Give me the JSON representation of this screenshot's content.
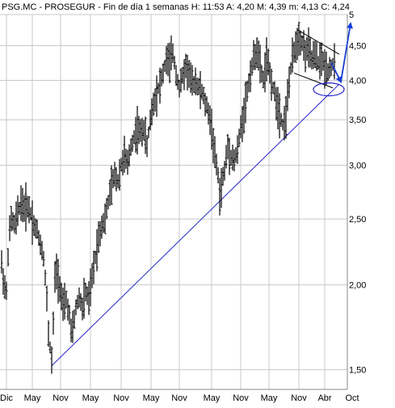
{
  "chart_data": {
    "type": "candlestick",
    "title": "PSG.MC - PROSEGUR - Fin de día 1 semanas H: 11:53  A: 4,20  M: 4,39  m: 4,13  C: 4,24",
    "y_scale": "log",
    "ylim": [
      1.45,
      5.0
    ],
    "y_ticks": [
      {
        "value": 5.0,
        "label": "5"
      },
      {
        "value": 4.5,
        "label": "4,50"
      },
      {
        "value": 4.0,
        "label": "4,00"
      },
      {
        "value": 3.5,
        "label": "3,50"
      },
      {
        "value": 3.0,
        "label": "3,00"
      },
      {
        "value": 2.5,
        "label": "2,50"
      },
      {
        "value": 2.0,
        "label": "2,00"
      },
      {
        "value": 1.5,
        "label": "1,50"
      }
    ],
    "x_ticks": [
      "Dic",
      "May",
      "Nov",
      "May",
      "Nov",
      "May",
      "Nov",
      "May",
      "Nov",
      "May",
      "Nov",
      "Abr",
      "Oct"
    ],
    "grid": true,
    "colors": {
      "grid": "#c8c8c8",
      "price": "#000000",
      "trendline": "#2222cc",
      "arrow": "#1a3fd6",
      "title": "#000000"
    },
    "price_shape": [
      [
        0,
        2.15
      ],
      [
        3,
        2.0
      ],
      [
        6,
        1.95
      ],
      [
        9,
        2.35
      ],
      [
        12,
        2.5
      ],
      [
        16,
        2.45
      ],
      [
        20,
        2.55
      ],
      [
        24,
        2.65
      ],
      [
        28,
        2.6
      ],
      [
        32,
        2.62
      ],
      [
        36,
        2.55
      ],
      [
        40,
        2.45
      ],
      [
        44,
        2.4
      ],
      [
        48,
        2.3
      ],
      [
        52,
        2.2
      ],
      [
        56,
        1.9
      ],
      [
        58,
        1.7
      ],
      [
        60,
        1.62
      ],
      [
        62,
        1.55
      ],
      [
        64,
        1.75
      ],
      [
        66,
        2.05
      ],
      [
        68,
        2.1
      ],
      [
        72,
        2.0
      ],
      [
        76,
        1.85
      ],
      [
        80,
        1.9
      ],
      [
        84,
        1.8
      ],
      [
        86,
        1.7
      ],
      [
        88,
        1.72
      ],
      [
        92,
        1.85
      ],
      [
        96,
        1.92
      ],
      [
        100,
        1.85
      ],
      [
        104,
        1.95
      ],
      [
        108,
        1.9
      ],
      [
        112,
        2.05
      ],
      [
        116,
        2.2
      ],
      [
        120,
        2.35
      ],
      [
        124,
        2.45
      ],
      [
        128,
        2.5
      ],
      [
        132,
        2.65
      ],
      [
        136,
        2.8
      ],
      [
        140,
        2.9
      ],
      [
        144,
        2.85
      ],
      [
        148,
        3.0
      ],
      [
        152,
        3.1
      ],
      [
        156,
        3.0
      ],
      [
        160,
        3.2
      ],
      [
        164,
        3.3
      ],
      [
        168,
        3.4
      ],
      [
        172,
        3.35
      ],
      [
        176,
        3.4
      ],
      [
        180,
        3.2
      ],
      [
        184,
        3.5
      ],
      [
        188,
        3.7
      ],
      [
        192,
        3.85
      ],
      [
        196,
        3.95
      ],
      [
        200,
        4.1
      ],
      [
        204,
        4.3
      ],
      [
        208,
        4.25
      ],
      [
        212,
        4.4
      ],
      [
        216,
        4.1
      ],
      [
        220,
        3.9
      ],
      [
        224,
        4.05
      ],
      [
        228,
        4.2
      ],
      [
        232,
        4.1
      ],
      [
        236,
        3.95
      ],
      [
        240,
        4.0
      ],
      [
        244,
        3.9
      ],
      [
        248,
        3.85
      ],
      [
        252,
        3.7
      ],
      [
        256,
        3.6
      ],
      [
        260,
        3.4
      ],
      [
        264,
        3.1
      ],
      [
        268,
        2.9
      ],
      [
        270,
        2.7
      ],
      [
        272,
        2.8
      ],
      [
        276,
        2.95
      ],
      [
        280,
        3.2
      ],
      [
        284,
        3.1
      ],
      [
        288,
        3.05
      ],
      [
        292,
        3.15
      ],
      [
        296,
        3.4
      ],
      [
        300,
        3.6
      ],
      [
        304,
        3.85
      ],
      [
        308,
        4.1
      ],
      [
        312,
        4.3
      ],
      [
        316,
        4.45
      ],
      [
        320,
        4.2
      ],
      [
        324,
        4.0
      ],
      [
        328,
        4.3
      ],
      [
        332,
        4.1
      ],
      [
        336,
        3.9
      ],
      [
        340,
        3.75
      ],
      [
        344,
        3.6
      ],
      [
        348,
        3.45
      ],
      [
        352,
        3.55
      ],
      [
        356,
        4.0
      ],
      [
        360,
        4.3
      ],
      [
        364,
        4.5
      ],
      [
        368,
        4.65
      ],
      [
        372,
        4.55
      ],
      [
        376,
        4.4
      ],
      [
        380,
        4.45
      ],
      [
        384,
        4.3
      ],
      [
        388,
        4.35
      ],
      [
        392,
        4.25
      ],
      [
        396,
        4.3
      ],
      [
        400,
        4.2
      ],
      [
        404,
        4.15
      ],
      [
        408,
        4.2
      ],
      [
        412,
        4.24
      ]
    ],
    "annotations": {
      "trendline": {
        "from": [
          62,
          1.52
        ],
        "to": [
          418,
          3.95
        ]
      },
      "channel_top": {
        "from": [
          366,
          4.75
        ],
        "to": [
          418,
          4.37
        ]
      },
      "channel_bottom": {
        "from": [
          362,
          4.1
        ],
        "to": [
          410,
          3.9
        ]
      },
      "ellipse_center": [
        405,
        3.88
      ],
      "arrow_down": {
        "from": [
          408,
          4.25
        ],
        "to": [
          420,
          3.98
        ]
      },
      "arrow_up": {
        "from": [
          420,
          3.98
        ],
        "to": [
          432,
          4.85
        ]
      }
    }
  }
}
